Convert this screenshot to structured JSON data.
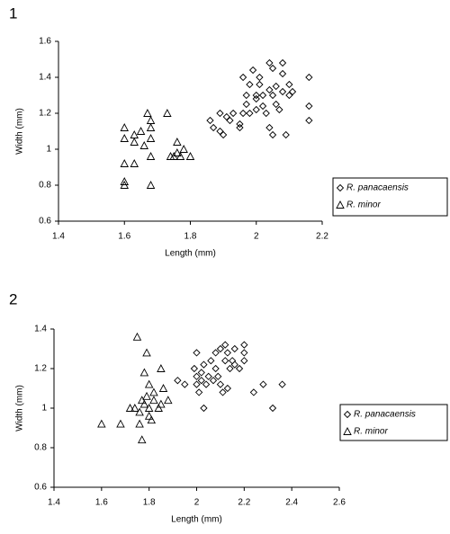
{
  "chart_data": [
    {
      "type": "scatter",
      "label": "1",
      "xlabel": "Length (mm)",
      "ylabel": "Width (mm)",
      "xlim": [
        1.4,
        2.2
      ],
      "xticks": [
        1.4,
        1.6,
        1.8,
        2,
        2.2
      ],
      "ylim": [
        0.6,
        1.6
      ],
      "yticks": [
        0.6,
        0.8,
        1,
        1.2,
        1.4,
        1.6
      ],
      "grid": false,
      "legend": "right",
      "series": [
        {
          "name": "R. panacaensis",
          "color": "#000000",
          "marker": "diamond",
          "x": [
            1.86,
            1.87,
            1.89,
            1.89,
            1.9,
            1.91,
            1.92,
            1.93,
            1.95,
            1.95,
            1.96,
            1.96,
            1.97,
            1.97,
            1.98,
            1.98,
            1.99,
            2.0,
            2.0,
            2.0,
            2.01,
            2.01,
            2.02,
            2.02,
            2.03,
            2.04,
            2.04,
            2.04,
            2.05,
            2.05,
            2.05,
            2.06,
            2.06,
            2.07,
            2.08,
            2.08,
            2.08,
            2.09,
            2.1,
            2.1,
            2.11,
            2.16,
            2.16,
            2.16
          ],
          "y": [
            1.16,
            1.12,
            1.2,
            1.1,
            1.08,
            1.18,
            1.16,
            1.2,
            1.14,
            1.12,
            1.2,
            1.4,
            1.3,
            1.25,
            1.36,
            1.2,
            1.44,
            1.3,
            1.28,
            1.22,
            1.4,
            1.36,
            1.3,
            1.24,
            1.2,
            1.48,
            1.33,
            1.12,
            1.45,
            1.3,
            1.08,
            1.35,
            1.25,
            1.22,
            1.48,
            1.42,
            1.32,
            1.08,
            1.36,
            1.3,
            1.32,
            1.4,
            1.24,
            1.16
          ]
        },
        {
          "name": "R. minor",
          "color": "#000000",
          "marker": "triangle",
          "x": [
            1.6,
            1.6,
            1.6,
            1.6,
            1.6,
            1.63,
            1.63,
            1.63,
            1.65,
            1.66,
            1.67,
            1.68,
            1.68,
            1.68,
            1.68,
            1.68,
            1.73,
            1.74,
            1.75,
            1.76,
            1.76,
            1.77,
            1.78,
            1.8
          ],
          "y": [
            1.12,
            1.06,
            0.92,
            0.82,
            0.8,
            1.08,
            1.04,
            0.92,
            1.1,
            1.02,
            1.2,
            1.16,
            1.12,
            1.06,
            0.96,
            0.8,
            1.2,
            0.96,
            0.96,
            1.04,
            0.98,
            0.96,
            1.0,
            0.96
          ]
        }
      ]
    },
    {
      "type": "scatter",
      "label": "2",
      "xlabel": "Length (mm)",
      "ylabel": "Width (mm)",
      "xlim": [
        1.4,
        2.6
      ],
      "xticks": [
        1.4,
        1.6,
        1.8,
        2,
        2.2,
        2.4,
        2.6
      ],
      "ylim": [
        0.6,
        1.4
      ],
      "yticks": [
        0.6,
        0.8,
        1,
        1.2,
        1.4
      ],
      "grid": false,
      "legend": "right",
      "series": [
        {
          "name": "R. panacaensis",
          "color": "#000000",
          "marker": "diamond",
          "x": [
            1.92,
            1.95,
            1.99,
            2.0,
            2.0,
            2.0,
            2.01,
            2.02,
            2.02,
            2.03,
            2.03,
            2.04,
            2.05,
            2.06,
            2.07,
            2.08,
            2.08,
            2.09,
            2.1,
            2.1,
            2.11,
            2.12,
            2.12,
            2.13,
            2.13,
            2.14,
            2.15,
            2.16,
            2.16,
            2.18,
            2.2,
            2.2,
            2.2,
            2.24,
            2.28,
            2.32,
            2.36
          ],
          "y": [
            1.14,
            1.12,
            1.2,
            1.28,
            1.16,
            1.12,
            1.08,
            1.18,
            1.14,
            1.0,
            1.22,
            1.12,
            1.16,
            1.24,
            1.14,
            1.28,
            1.2,
            1.16,
            1.3,
            1.12,
            1.08,
            1.32,
            1.24,
            1.28,
            1.1,
            1.2,
            1.24,
            1.3,
            1.22,
            1.2,
            1.32,
            1.28,
            1.24,
            1.08,
            1.12,
            1.0,
            1.12
          ]
        },
        {
          "name": "R. minor",
          "color": "#000000",
          "marker": "triangle",
          "x": [
            1.6,
            1.68,
            1.72,
            1.74,
            1.75,
            1.76,
            1.76,
            1.77,
            1.77,
            1.78,
            1.78,
            1.79,
            1.79,
            1.8,
            1.8,
            1.8,
            1.81,
            1.82,
            1.82,
            1.84,
            1.85,
            1.85,
            1.86,
            1.88
          ],
          "y": [
            0.92,
            0.92,
            1.0,
            1.0,
            1.36,
            0.92,
            0.98,
            0.84,
            1.04,
            1.02,
            1.18,
            1.28,
            1.06,
            1.12,
            0.96,
            1.0,
            0.94,
            1.04,
            1.08,
            1.0,
            1.2,
            1.02,
            1.1,
            1.04
          ]
        }
      ]
    }
  ]
}
